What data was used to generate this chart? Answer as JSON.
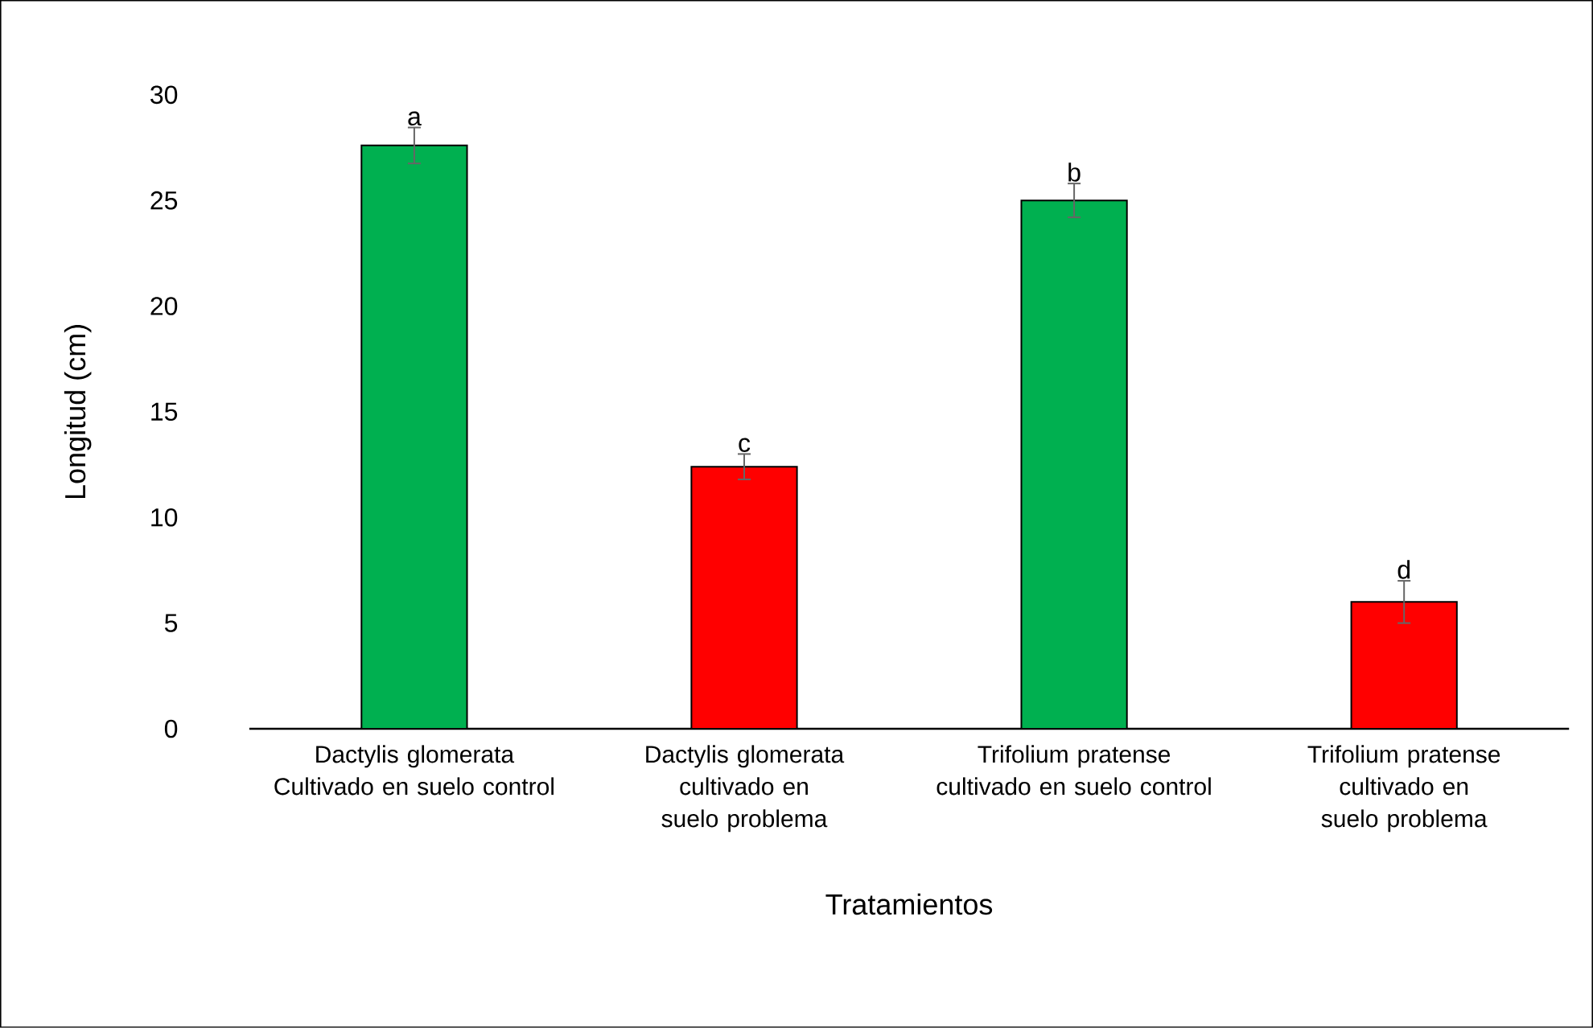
{
  "chart_data": {
    "type": "bar",
    "xlabel": "Tratamientos",
    "ylabel": "Longitud (cm)",
    "categories": [
      "Dactylis glomerata Cultivado en suelo control",
      "Dactylis glomerata cultivado en suelo problema",
      "Trifolium pratense cultivado en suelo control",
      "Trifolium pratense cultivado en suelo problema"
    ],
    "values": [
      27.6,
      12.4,
      25,
      6
    ],
    "errors": [
      0.85,
      0.6,
      0.8,
      1.0
    ],
    "colors": [
      "#00b050",
      "#ff0000",
      "#00b050",
      "#ff0000"
    ],
    "ylim": [
      0,
      30
    ],
    "yticks": [
      0,
      5,
      10,
      15,
      20,
      25,
      30
    ],
    "annotations": [
      {
        "text": "a",
        "x": "Dactylis glomerata Cultivado en suelo control",
        "y": 28.45
      },
      {
        "text": "c",
        "x": "Dactylis glomerata cultivado en suelo problema",
        "y": 13.0
      },
      {
        "text": "b",
        "x": "Trifolium pratense cultivado en suelo control",
        "y": 25.8
      },
      {
        "text": "d",
        "x": "Trifolium pratense cultivado en suelo problema",
        "y": 7.0
      }
    ]
  }
}
